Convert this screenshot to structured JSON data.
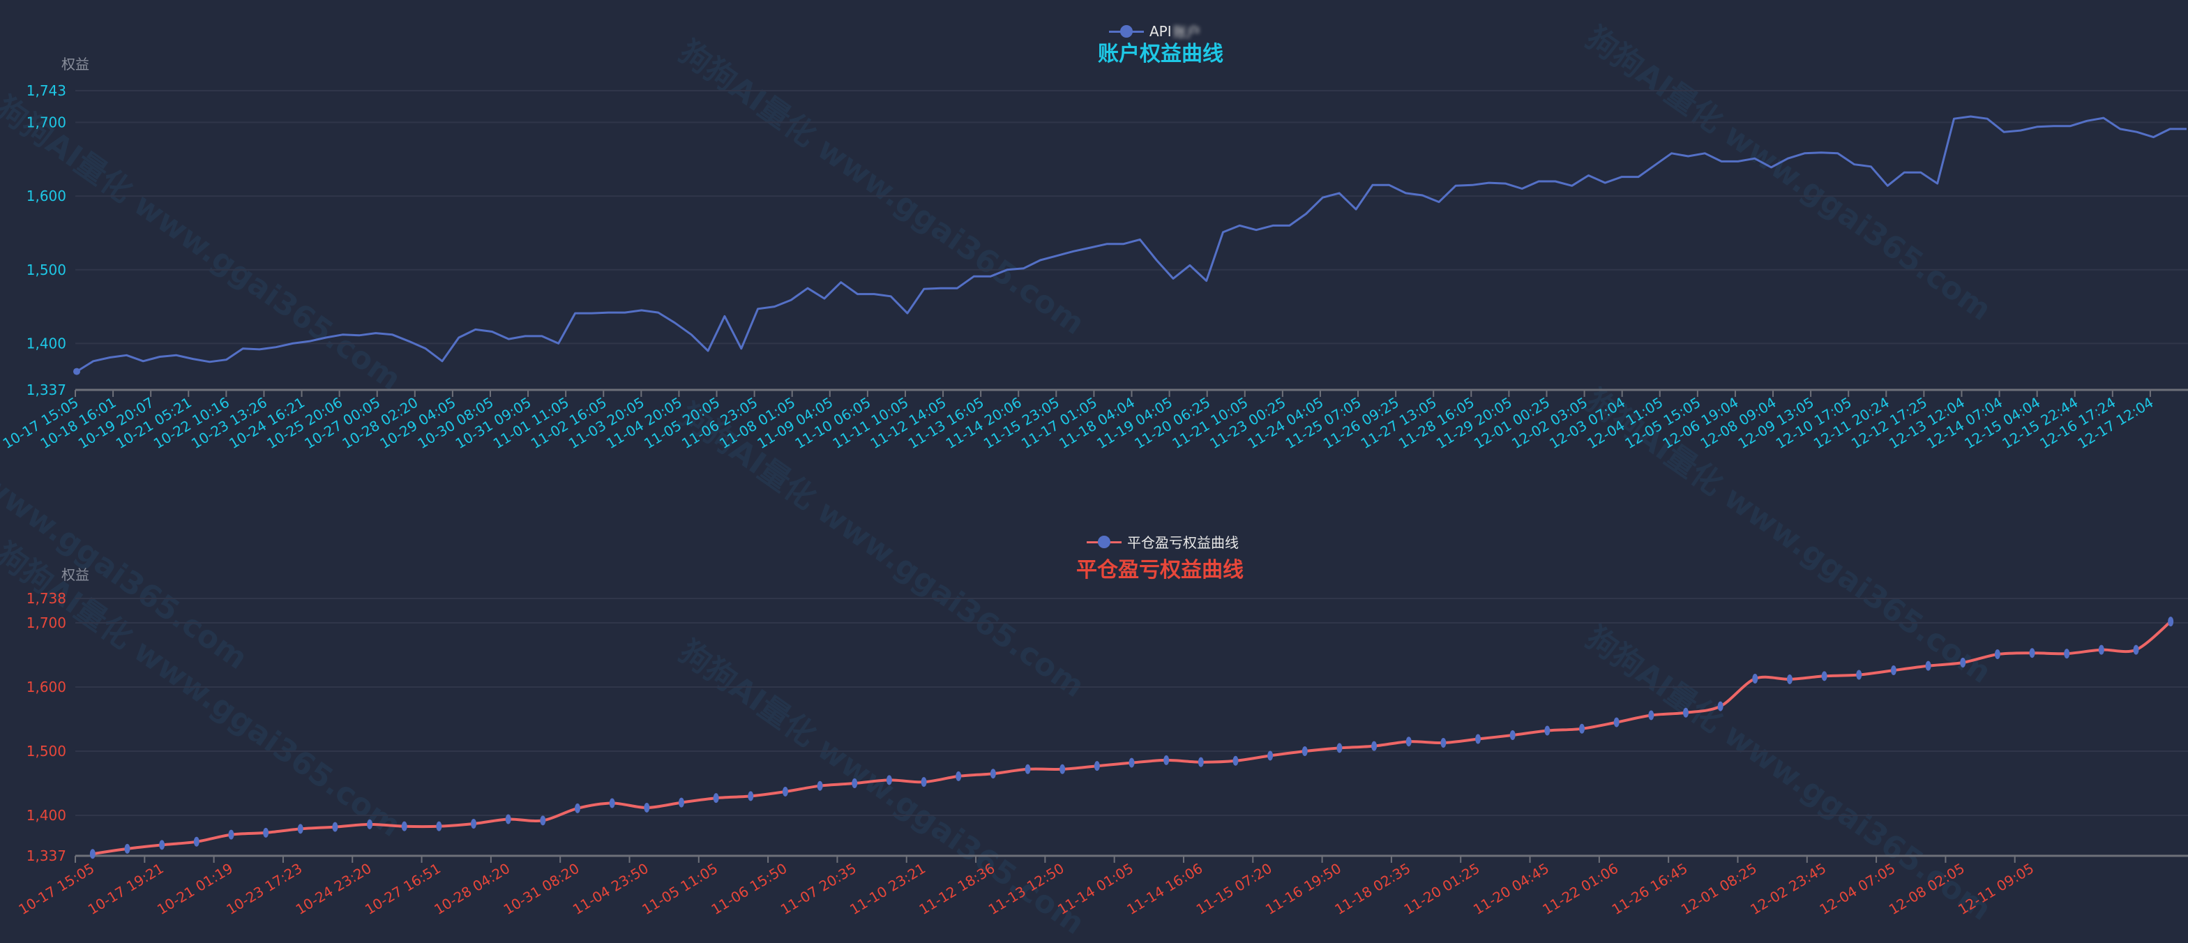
{
  "watermark": "狗狗AI量化 www.ggai365.com",
  "colors": {
    "background": "#232a3d",
    "top_line": "#5470c6",
    "top_text": "#1ec8e6",
    "bottom_line": "#ee6666",
    "bottom_marker": "#5470c6",
    "bottom_text": "#e8473a",
    "grid": "#30364a"
  },
  "chart_data": [
    {
      "type": "line",
      "title": "账户权益曲线",
      "legend": {
        "label": "API",
        "label_obscured": "账户",
        "placement": "top-center"
      },
      "ylabel": "权益",
      "ylim": [
        1337,
        1743
      ],
      "y_ticks": [
        "1,337",
        "1,400",
        "1,500",
        "1,600",
        "1,700",
        "1,743"
      ],
      "y_tick_values": [
        1337,
        1400,
        1500,
        1600,
        1700,
        1743
      ],
      "grid": true,
      "x_tick_labels": [
        "10-17 15:05",
        "10-18 16:01",
        "10-19 20:07",
        "10-21 05:21",
        "10-22 10:16",
        "10-23 13:26",
        "10-24 16:21",
        "10-25 20:06",
        "10-27 00:05",
        "10-28 02:20",
        "10-29 04:05",
        "10-30 08:05",
        "10-31 09:05",
        "11-01 11:05",
        "11-02 16:05",
        "11-03 20:05",
        "11-04 20:05",
        "11-05 20:05",
        "11-06 23:05",
        "11-08 01:05",
        "11-09 04:05",
        "11-10 06:05",
        "11-11 10:05",
        "11-12 14:05",
        "11-13 16:05",
        "11-14 20:06",
        "11-15 23:05",
        "11-17 01:05",
        "11-18 04:04",
        "11-19 04:05",
        "11-20 06:25",
        "11-21 10:05",
        "11-23 00:25",
        "11-24 04:05",
        "11-25 07:05",
        "11-26 09:25",
        "11-27 13:05",
        "11-28 16:05",
        "11-29 20:05",
        "12-01 00:25",
        "12-02 03:05",
        "12-03 07:04",
        "12-04 11:05",
        "12-05 15:05",
        "12-06 19:04",
        "12-08 09:04",
        "12-09 13:05",
        "12-10 17:05",
        "12-11 20:24",
        "12-12 17:25",
        "12-13 12:04",
        "12-14 07:04",
        "12-15 04:04",
        "12-15 22:44",
        "12-16 17:24",
        "12-17 12:04"
      ],
      "series": [
        {
          "values": [
            1362,
            1376,
            1381,
            1384,
            1376,
            1382,
            1384,
            1379,
            1375,
            1378,
            1393,
            1392,
            1395,
            1400,
            1403,
            1408,
            1412,
            1411,
            1414,
            1412,
            1403,
            1393,
            1376,
            1408,
            1419,
            1416,
            1406,
            1410,
            1410,
            1400,
            1441,
            1441,
            1442,
            1442,
            1445,
            1442,
            1428,
            1412,
            1390,
            1437,
            1393,
            1447,
            1450,
            1459,
            1475,
            1461,
            1483,
            1467,
            1467,
            1464,
            1441,
            1474,
            1475,
            1475,
            1491,
            1491,
            1500,
            1502,
            1513,
            1519,
            1525,
            1530,
            1535,
            1535,
            1541,
            1513,
            1488,
            1506,
            1485,
            1551,
            1560,
            1554,
            1560,
            1560,
            1576,
            1598,
            1604,
            1582,
            1615,
            1615,
            1604,
            1601,
            1592,
            1614,
            1615,
            1618,
            1617,
            1610,
            1620,
            1620,
            1614,
            1628,
            1618,
            1626,
            1626,
            1642,
            1658,
            1654,
            1658,
            1647,
            1647,
            1651,
            1639,
            1651,
            1658,
            1659,
            1658,
            1643,
            1640,
            1614,
            1632,
            1632,
            1617,
            1705,
            1708,
            1705,
            1687,
            1689,
            1694,
            1695,
            1695,
            1702,
            1706,
            1691,
            1687,
            1680,
            1691,
            1691
          ]
        }
      ]
    },
    {
      "type": "line",
      "title": "平仓盈亏权益曲线",
      "legend": {
        "label": "平仓盈亏权益曲线",
        "placement": "top-center"
      },
      "ylabel": "权益",
      "ylim": [
        1337,
        1738
      ],
      "y_ticks": [
        "1,337",
        "1,400",
        "1,500",
        "1,600",
        "1,700",
        "1,738"
      ],
      "y_tick_values": [
        1337,
        1400,
        1500,
        1600,
        1700,
        1738
      ],
      "grid": true,
      "smooth": true,
      "x_tick_labels": [
        "10-17 15:05",
        "10-17 19:21",
        "10-21 01:19",
        "10-23 17:23",
        "10-24 23:20",
        "10-27 16:51",
        "10-28 04:20",
        "10-31 08:20",
        "11-04 23:50",
        "11-05 11:05",
        "11-06 15:50",
        "11-07 20:35",
        "11-10 23:21",
        "11-12 18:36",
        "11-13 12:50",
        "11-14 01:05",
        "11-14 16:06",
        "11-15 07:20",
        "11-16 19:50",
        "11-18 02:35",
        "11-20 01:25",
        "11-20 04:45",
        "11-22 01:06",
        "11-26 16:45",
        "12-01 08:25",
        "12-02 23:45",
        "12-04 07:05",
        "12-08 02:05",
        "12-11 09:05"
      ],
      "series": [
        {
          "name": "平仓盈亏权益曲线",
          "values": [
            1340,
            1348,
            1354,
            1359,
            1370,
            1373,
            1379,
            1382,
            1386,
            1383,
            1383,
            1387,
            1394,
            1392,
            1411,
            1419,
            1412,
            1420,
            1427,
            1430,
            1437,
            1446,
            1450,
            1455,
            1452,
            1461,
            1465,
            1472,
            1472,
            1477,
            1482,
            1486,
            1483,
            1485,
            1493,
            1500,
            1505,
            1508,
            1515,
            1513,
            1519,
            1525,
            1532,
            1535,
            1545,
            1556,
            1560,
            1570,
            1613,
            1612,
            1617,
            1619,
            1626,
            1633,
            1638,
            1651,
            1653,
            1652,
            1658,
            1658,
            1702
          ]
        }
      ]
    }
  ]
}
